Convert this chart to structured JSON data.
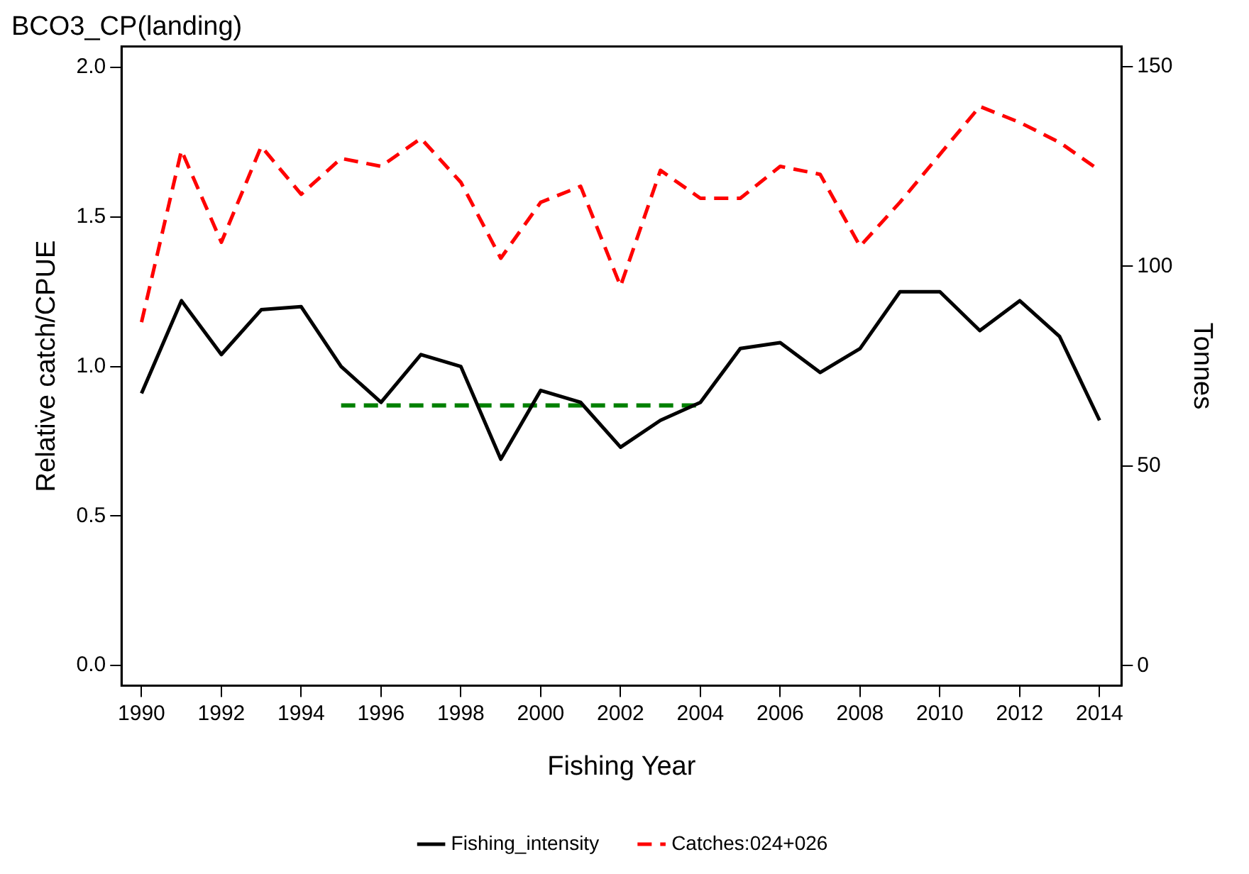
{
  "chart_data": {
    "type": "line",
    "title": "BCO3_CP(landing)",
    "xlabel": "Fishing Year",
    "ylabel": "Relative catch/CPUE",
    "y2label": "Tonnes",
    "x": [
      1990,
      1991,
      1992,
      1993,
      1994,
      1995,
      1996,
      1997,
      1998,
      1999,
      2000,
      2001,
      2002,
      2003,
      2004,
      2005,
      2006,
      2007,
      2008,
      2009,
      2010,
      2011,
      2012,
      2013,
      2014
    ],
    "series": [
      {
        "name": "Fishing_intensity",
        "color": "#000000",
        "line_style": "solid",
        "values": [
          0.91,
          1.22,
          1.04,
          1.19,
          1.2,
          1.0,
          0.88,
          1.04,
          1.0,
          0.69,
          0.92,
          0.88,
          0.73,
          0.82,
          0.88,
          1.06,
          1.08,
          0.98,
          1.06,
          1.25,
          1.25,
          1.12,
          1.22,
          1.1,
          0.82
        ]
      },
      {
        "name": "Catches:024+026",
        "color": "#ff0000",
        "line_style": "dashed",
        "axis": "y2",
        "values": [
          86,
          129,
          106,
          130,
          118,
          127,
          125,
          132,
          121,
          102,
          116,
          120,
          95,
          124,
          117,
          117,
          125,
          123,
          105,
          116,
          128,
          140,
          136,
          131,
          124
        ]
      },
      {
        "type": "line",
        "color": "#008000",
        "line_style": "dashed",
        "x": [
          1995,
          2004
        ],
        "values": [
          0.87,
          0.87
        ]
      }
    ],
    "xlim": [
      1989.5,
      2014.55
    ],
    "xticks": [
      1990,
      1992,
      1994,
      1996,
      1998,
      2000,
      2002,
      2004,
      2006,
      2008,
      2010,
      2012,
      2014
    ],
    "ylim": [
      -0.067,
      2.07
    ],
    "yticks": [
      {
        "value": 0,
        "label": "0.0"
      },
      {
        "value": 0.5,
        "label": "0.5"
      },
      {
        "value": 1,
        "label": "1.0"
      },
      {
        "value": 1.5,
        "label": "1.5"
      },
      {
        "value": 2,
        "label": "2.0"
      }
    ],
    "y2lim": [
      -5,
      155
    ],
    "y2ticks": [
      0,
      50,
      100,
      150
    ],
    "grid": false,
    "legend": "bottom",
    "marker": "none"
  }
}
